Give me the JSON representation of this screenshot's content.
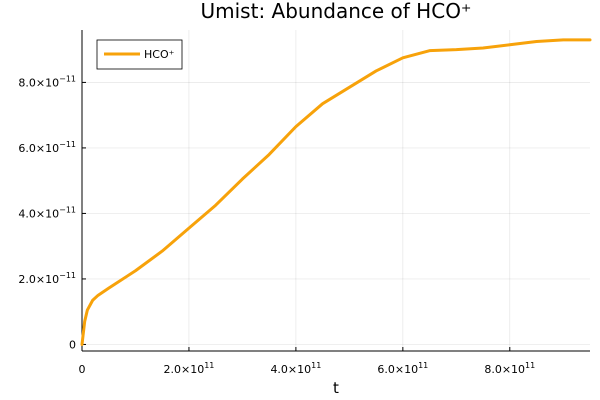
{
  "chart_data": {
    "type": "line",
    "title": "Umist: Abundance of HCO⁺",
    "xlabel": "t",
    "ylabel": "",
    "xlim": [
      0,
      950000000000
    ],
    "ylim": [
      -2000000000000,
      96000000000000
    ],
    "y_scale_exponent": -11,
    "x_scale_exponent": 11,
    "x_ticks": [
      {
        "value": 0,
        "mantissa": "0",
        "exp": ""
      },
      {
        "value": 200000000000,
        "mantissa": "2.0×10",
        "exp": "11"
      },
      {
        "value": 400000000000,
        "mantissa": "4.0×10",
        "exp": "11"
      },
      {
        "value": 600000000000,
        "mantissa": "6.0×10",
        "exp": "11"
      },
      {
        "value": 800000000000,
        "mantissa": "8.0×10",
        "exp": "11"
      }
    ],
    "y_ticks": [
      {
        "value": 0,
        "mantissa": "0",
        "exp": ""
      },
      {
        "value": 2,
        "mantissa": "2.0×10",
        "exp": "−11"
      },
      {
        "value": 4,
        "mantissa": "4.0×10",
        "exp": "−11"
      },
      {
        "value": 6,
        "mantissa": "6.0×10",
        "exp": "−11"
      },
      {
        "value": 8,
        "mantissa": "8.0×10",
        "exp": "−11"
      }
    ],
    "grid": true,
    "legend_position": "top-left",
    "series": [
      {
        "name": "HCO⁺",
        "color": "#f7a20a",
        "x": [
          0,
          5000000000,
          10000000000,
          20000000000,
          30000000000,
          50000000000,
          100000000000,
          150000000000,
          200000000000,
          250000000000,
          300000000000,
          350000000000,
          400000000000,
          450000000000,
          500000000000,
          550000000000,
          600000000000,
          650000000000,
          700000000000,
          750000000000,
          800000000000,
          850000000000,
          900000000000,
          950000000000
        ],
        "y": [
          0,
          0.7,
          1.05,
          1.35,
          1.5,
          1.72,
          2.25,
          2.85,
          3.55,
          4.25,
          5.05,
          5.8,
          6.65,
          7.35,
          7.85,
          8.35,
          8.75,
          8.97,
          9.0,
          9.05,
          9.15,
          9.25,
          9.3,
          9.3
        ]
      }
    ]
  }
}
